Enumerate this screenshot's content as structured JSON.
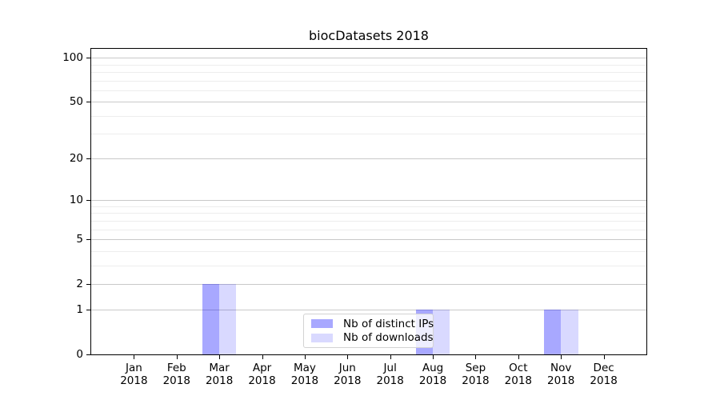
{
  "page": {
    "background": "#ffffff"
  },
  "chart_data": {
    "type": "bar",
    "title": "biocDatasets 2018",
    "categories": [
      "Jan",
      "Feb",
      "Mar",
      "Apr",
      "May",
      "Jun",
      "Jul",
      "Aug",
      "Sep",
      "Oct",
      "Nov",
      "Dec"
    ],
    "year_label": "2018",
    "series": [
      {
        "name": "Nb of distinct IPs",
        "color": "rgba(0,0,255,0.34)",
        "color_hex": "#a9a9f8",
        "values": [
          0,
          0,
          2,
          0,
          0,
          0,
          0,
          1,
          0,
          0,
          1,
          0
        ]
      },
      {
        "name": "Nb of downloads",
        "color": "rgba(0,0,255,0.15)",
        "color_hex": "#d9daf8",
        "values": [
          0,
          0,
          2,
          0,
          0,
          0,
          0,
          1,
          0,
          0,
          1,
          0
        ]
      }
    ],
    "yscale": "log1p",
    "ylim": [
      0,
      115
    ],
    "y_major_ticks": [
      100,
      50,
      20,
      10,
      5,
      2,
      1,
      0
    ],
    "y_minor_gridlines": [
      3,
      4,
      6,
      7,
      8,
      9,
      30,
      40,
      60,
      70,
      80,
      90
    ],
    "grid": true,
    "legend_position": "lower center",
    "colors": {
      "grid_major": "#c9c9c9",
      "grid_minor": "#ededed",
      "axis": "#000000",
      "text": "#000000",
      "legend_border": "#d2d2d2"
    }
  }
}
